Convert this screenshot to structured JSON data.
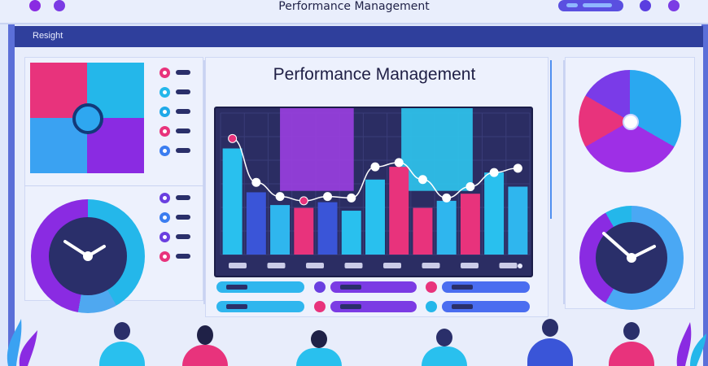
{
  "app": {
    "title": "Performance Management",
    "nav_label": "Resight"
  },
  "colors": {
    "navy": "#2f3f9c",
    "pink": "#e8337c",
    "cyan": "#24b7ea",
    "blue": "#3aa2f2",
    "purple": "#8a2be2",
    "dark": "#2b2d63"
  },
  "left_list_top": [
    {
      "icon": "pink-dot-icon",
      "color": "#e8337c"
    },
    {
      "icon": "cyan-dot-icon",
      "color": "#24b7ea"
    },
    {
      "icon": "cyan-dot-icon",
      "color": "#1fa9e8"
    },
    {
      "icon": "pink-dot-icon",
      "color": "#e8337c"
    },
    {
      "icon": "blue-dot-icon",
      "color": "#3b7df0"
    }
  ],
  "left_list_bottom": [
    {
      "icon": "purple-dot-icon",
      "color": "#6a3fe0"
    },
    {
      "icon": "blue-dot-icon",
      "color": "#3b7df0"
    },
    {
      "icon": "purple-dot-icon",
      "color": "#6a3fe0"
    },
    {
      "icon": "pink-dot-icon",
      "color": "#e8337c"
    }
  ],
  "chart_data": {
    "type": "bar",
    "bars": [
      {
        "value": 75,
        "color": "#29c0ee"
      },
      {
        "value": 44,
        "color": "#3a55d8"
      },
      {
        "value": 35,
        "color": "#2fb6ee"
      },
      {
        "value": 33,
        "color": "#e8337c"
      },
      {
        "value": 37,
        "color": "#3a55d8"
      },
      {
        "value": 31,
        "color": "#29c0ee"
      },
      {
        "value": 53,
        "color": "#29c0ee"
      },
      {
        "value": 62,
        "color": "#e8337c"
      },
      {
        "value": 33,
        "color": "#e8337c"
      },
      {
        "value": 38,
        "color": "#2fb6ee"
      },
      {
        "value": 43,
        "color": "#e8337c"
      },
      {
        "value": 58,
        "color": "#29c0ee"
      },
      {
        "value": 48,
        "color": "#2fb6ee"
      }
    ],
    "line_points": [
      82,
      51,
      41,
      38,
      41,
      40,
      62,
      65,
      53,
      40,
      48,
      58,
      61
    ],
    "highlight_bands": [
      {
        "start_bar": 2.5,
        "end_bar": 5.6,
        "color": "#9a3fe0"
      },
      {
        "start_bar": 7.6,
        "end_bar": 10.6,
        "color": "#2fc7ee"
      }
    ],
    "grid": true,
    "ylim": [
      0,
      100
    ],
    "tick_count": 8
  }
}
